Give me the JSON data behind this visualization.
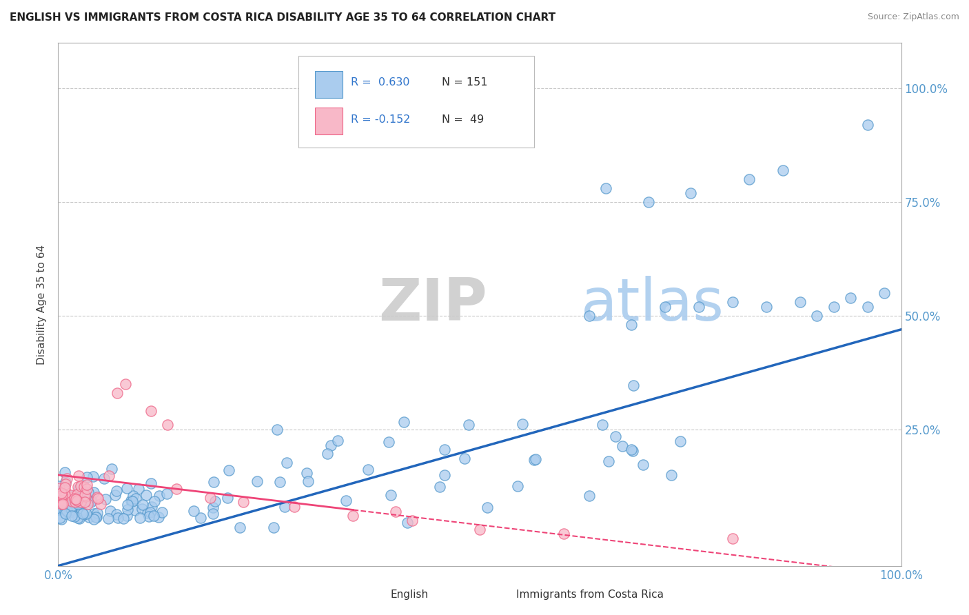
{
  "title": "ENGLISH VS IMMIGRANTS FROM COSTA RICA DISABILITY AGE 35 TO 64 CORRELATION CHART",
  "source": "Source: ZipAtlas.com",
  "ylabel": "Disability Age 35 to 64",
  "xlim": [
    0,
    1.0
  ],
  "ylim": [
    -0.05,
    1.1
  ],
  "english_color": "#aaccee",
  "english_edge": "#5599cc",
  "immigrant_color": "#f8b8c8",
  "immigrant_edge": "#ee6688",
  "trendline_english_color": "#2266bb",
  "trendline_immigrant_color": "#ee4477",
  "background_color": "#ffffff",
  "grid_color": "#bbbbbb",
  "watermark_zip": "ZIP",
  "watermark_atlas": "atlas",
  "watermark_zip_color": "#cccccc",
  "watermark_atlas_color": "#aaccee",
  "tick_color": "#5599cc",
  "title_color": "#222222",
  "source_color": "#888888",
  "legend_r1_color": "#3377cc",
  "legend_n_color": "#333333"
}
